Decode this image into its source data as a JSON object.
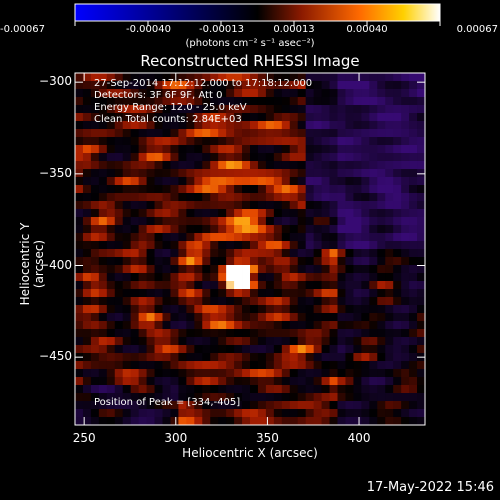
{
  "colorbar": {
    "ticks": [
      "-0.00067",
      "-0.00040",
      "-0.00013",
      "0.00013",
      "0.00040",
      "0.00067"
    ],
    "unit_label": "(photons cm⁻² s⁻¹ asec⁻²)",
    "colors": [
      "#0000ff",
      "#000000",
      "#8b1a00",
      "#ff6a00",
      "#ffd000",
      "#ffffff"
    ]
  },
  "chart_data": {
    "type": "heatmap",
    "title": "Reconstructed RHESSI Image",
    "xlabel": "Heliocentric X (arcsec)",
    "ylabel": "Heliocentric Y (arcsec)",
    "xlim": [
      245,
      436
    ],
    "ylim": [
      -487,
      -295
    ],
    "xticks": [
      250,
      300,
      350,
      400
    ],
    "yticks": [
      -300,
      -350,
      -400,
      -450
    ],
    "peak": [
      334,
      -405
    ],
    "annotations": [
      "27-Sep-2014 17:12:12.000 to 17:18:12.000",
      "Detectors: 3F 6F 9F, Att 0",
      "Energy Range: 12.0 - 25.0 keV",
      "Clean    Total counts: 2.84E+03",
      "Position of Peak = [334,-405]"
    ]
  },
  "footer": {
    "date": "17-May-2022 15:46"
  }
}
